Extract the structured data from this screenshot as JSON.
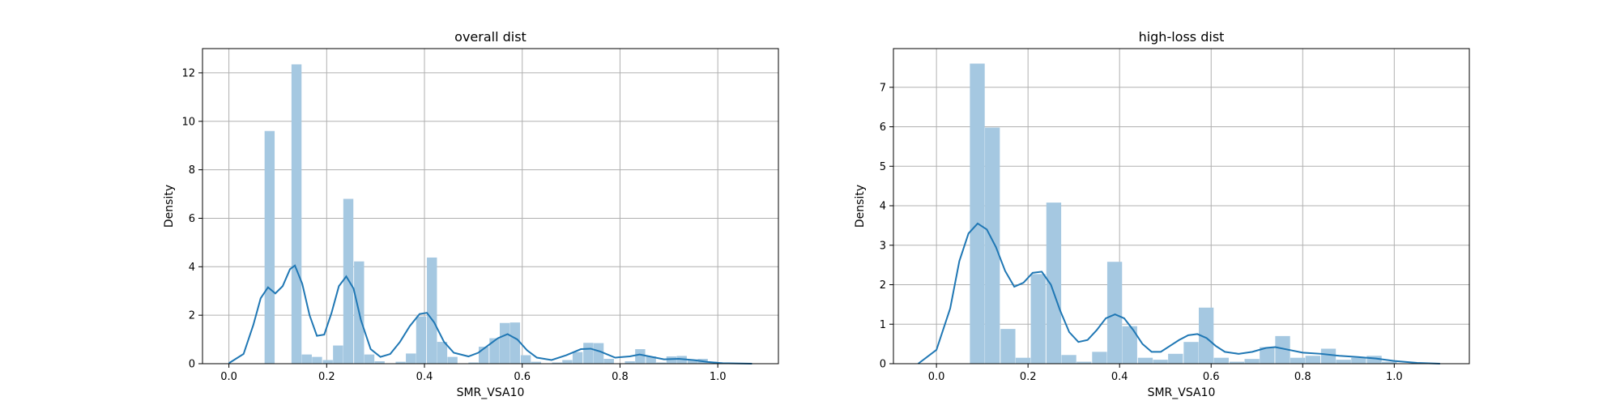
{
  "chart_data": [
    {
      "type": "histogram",
      "title": "overall dist",
      "xlabel": "SMR_VSA10",
      "ylabel": "Density",
      "xlim": [
        -0.054,
        1.124
      ],
      "ylim": [
        0,
        13
      ],
      "xticks": [
        0.0,
        0.2,
        0.4,
        0.6,
        0.8,
        1.0
      ],
      "xtick_labels": [
        "0.0",
        "0.2",
        "0.4",
        "0.6",
        "0.8",
        "1.0"
      ],
      "yticks": [
        0,
        2,
        4,
        6,
        8,
        10,
        12
      ],
      "ytick_labels": [
        "0",
        "2",
        "4",
        "6",
        "8",
        "10",
        "12"
      ],
      "grid": true,
      "bar_color": "#a5c8e1",
      "kde_color": "#1f77b4",
      "bin_width": 0.0214,
      "bins": [
        [
          0.073,
          9.6
        ],
        [
          0.128,
          12.35
        ],
        [
          0.149,
          0.38
        ],
        [
          0.17,
          0.28
        ],
        [
          0.192,
          0.15
        ],
        [
          0.213,
          0.75
        ],
        [
          0.234,
          6.8
        ],
        [
          0.256,
          4.22
        ],
        [
          0.277,
          0.38
        ],
        [
          0.298,
          0.1
        ],
        [
          0.341,
          0.08
        ],
        [
          0.362,
          0.42
        ],
        [
          0.383,
          1.95
        ],
        [
          0.405,
          4.38
        ],
        [
          0.426,
          0.9
        ],
        [
          0.447,
          0.28
        ],
        [
          0.49,
          0.05
        ],
        [
          0.511,
          0.7
        ],
        [
          0.533,
          1.05
        ],
        [
          0.554,
          1.68
        ],
        [
          0.575,
          1.7
        ],
        [
          0.597,
          0.35
        ],
        [
          0.618,
          0.08
        ],
        [
          0.661,
          0.05
        ],
        [
          0.682,
          0.15
        ],
        [
          0.703,
          0.48
        ],
        [
          0.725,
          0.86
        ],
        [
          0.746,
          0.85
        ],
        [
          0.767,
          0.2
        ],
        [
          0.81,
          0.1
        ],
        [
          0.831,
          0.6
        ],
        [
          0.853,
          0.3
        ],
        [
          0.874,
          0.05
        ],
        [
          0.895,
          0.3
        ],
        [
          0.916,
          0.32
        ],
        [
          0.938,
          0.18
        ],
        [
          0.959,
          0.2
        ],
        [
          0.98,
          0.08
        ]
      ],
      "kde": [
        [
          0.0,
          0.02
        ],
        [
          0.03,
          0.4
        ],
        [
          0.05,
          1.6
        ],
        [
          0.065,
          2.7
        ],
        [
          0.08,
          3.15
        ],
        [
          0.095,
          2.9
        ],
        [
          0.11,
          3.2
        ],
        [
          0.125,
          3.9
        ],
        [
          0.135,
          4.05
        ],
        [
          0.15,
          3.3
        ],
        [
          0.165,
          2.0
        ],
        [
          0.18,
          1.15
        ],
        [
          0.195,
          1.2
        ],
        [
          0.21,
          2.1
        ],
        [
          0.225,
          3.2
        ],
        [
          0.24,
          3.6
        ],
        [
          0.255,
          3.1
        ],
        [
          0.27,
          1.8
        ],
        [
          0.29,
          0.6
        ],
        [
          0.31,
          0.28
        ],
        [
          0.33,
          0.4
        ],
        [
          0.35,
          0.9
        ],
        [
          0.37,
          1.55
        ],
        [
          0.39,
          2.05
        ],
        [
          0.405,
          2.1
        ],
        [
          0.42,
          1.7
        ],
        [
          0.44,
          0.9
        ],
        [
          0.46,
          0.45
        ],
        [
          0.49,
          0.3
        ],
        [
          0.51,
          0.45
        ],
        [
          0.53,
          0.75
        ],
        [
          0.55,
          1.05
        ],
        [
          0.57,
          1.22
        ],
        [
          0.59,
          1.0
        ],
        [
          0.61,
          0.55
        ],
        [
          0.63,
          0.25
        ],
        [
          0.66,
          0.15
        ],
        [
          0.69,
          0.35
        ],
        [
          0.72,
          0.6
        ],
        [
          0.74,
          0.62
        ],
        [
          0.76,
          0.5
        ],
        [
          0.79,
          0.25
        ],
        [
          0.82,
          0.3
        ],
        [
          0.84,
          0.38
        ],
        [
          0.86,
          0.3
        ],
        [
          0.89,
          0.18
        ],
        [
          0.92,
          0.2
        ],
        [
          0.95,
          0.15
        ],
        [
          0.98,
          0.07
        ],
        [
          1.01,
          0.02
        ],
        [
          1.07,
          0.0
        ]
      ]
    },
    {
      "type": "histogram",
      "title": "high-loss dist",
      "xlabel": "SMR_VSA10",
      "ylabel": "Density",
      "xlim": [
        -0.094,
        1.164
      ],
      "ylim": [
        0,
        7.98
      ],
      "xticks": [
        0.0,
        0.2,
        0.4,
        0.6,
        0.8,
        1.0
      ],
      "xtick_labels": [
        "0.0",
        "0.2",
        "0.4",
        "0.6",
        "0.8",
        "1.0"
      ],
      "yticks": [
        0,
        1,
        2,
        3,
        4,
        5,
        6,
        7
      ],
      "ytick_labels": [
        "0",
        "1",
        "2",
        "3",
        "4",
        "5",
        "6",
        "7"
      ],
      "grid": true,
      "bar_color": "#a5c8e1",
      "kde_color": "#1f77b4",
      "bin_width": 0.0333,
      "bins": [
        [
          0.073,
          7.6
        ],
        [
          0.106,
          5.98
        ],
        [
          0.14,
          0.88
        ],
        [
          0.173,
          0.15
        ],
        [
          0.206,
          2.27
        ],
        [
          0.24,
          4.08
        ],
        [
          0.273,
          0.22
        ],
        [
          0.306,
          0.05
        ],
        [
          0.34,
          0.3
        ],
        [
          0.373,
          2.58
        ],
        [
          0.406,
          0.95
        ],
        [
          0.44,
          0.15
        ],
        [
          0.473,
          0.1
        ],
        [
          0.506,
          0.25
        ],
        [
          0.54,
          0.55
        ],
        [
          0.573,
          1.42
        ],
        [
          0.606,
          0.15
        ],
        [
          0.64,
          0.05
        ],
        [
          0.673,
          0.12
        ],
        [
          0.706,
          0.42
        ],
        [
          0.74,
          0.7
        ],
        [
          0.773,
          0.15
        ],
        [
          0.806,
          0.2
        ],
        [
          0.84,
          0.38
        ],
        [
          0.873,
          0.1
        ],
        [
          0.906,
          0.15
        ],
        [
          0.94,
          0.2
        ],
        [
          0.973,
          0.05
        ]
      ],
      "kde": [
        [
          -0.04,
          0.0
        ],
        [
          0.0,
          0.35
        ],
        [
          0.03,
          1.4
        ],
        [
          0.05,
          2.6
        ],
        [
          0.07,
          3.3
        ],
        [
          0.09,
          3.55
        ],
        [
          0.11,
          3.4
        ],
        [
          0.13,
          2.95
        ],
        [
          0.15,
          2.35
        ],
        [
          0.17,
          1.95
        ],
        [
          0.19,
          2.05
        ],
        [
          0.21,
          2.3
        ],
        [
          0.23,
          2.33
        ],
        [
          0.25,
          2.0
        ],
        [
          0.27,
          1.35
        ],
        [
          0.29,
          0.8
        ],
        [
          0.31,
          0.55
        ],
        [
          0.33,
          0.6
        ],
        [
          0.35,
          0.85
        ],
        [
          0.37,
          1.15
        ],
        [
          0.39,
          1.25
        ],
        [
          0.41,
          1.15
        ],
        [
          0.43,
          0.85
        ],
        [
          0.45,
          0.5
        ],
        [
          0.47,
          0.3
        ],
        [
          0.49,
          0.3
        ],
        [
          0.51,
          0.45
        ],
        [
          0.53,
          0.6
        ],
        [
          0.55,
          0.72
        ],
        [
          0.57,
          0.75
        ],
        [
          0.59,
          0.65
        ],
        [
          0.61,
          0.45
        ],
        [
          0.63,
          0.3
        ],
        [
          0.66,
          0.25
        ],
        [
          0.69,
          0.3
        ],
        [
          0.72,
          0.4
        ],
        [
          0.74,
          0.42
        ],
        [
          0.77,
          0.35
        ],
        [
          0.8,
          0.28
        ],
        [
          0.84,
          0.25
        ],
        [
          0.88,
          0.2
        ],
        [
          0.92,
          0.17
        ],
        [
          0.96,
          0.13
        ],
        [
          1.0,
          0.07
        ],
        [
          1.05,
          0.02
        ],
        [
          1.1,
          0.0
        ]
      ]
    }
  ]
}
